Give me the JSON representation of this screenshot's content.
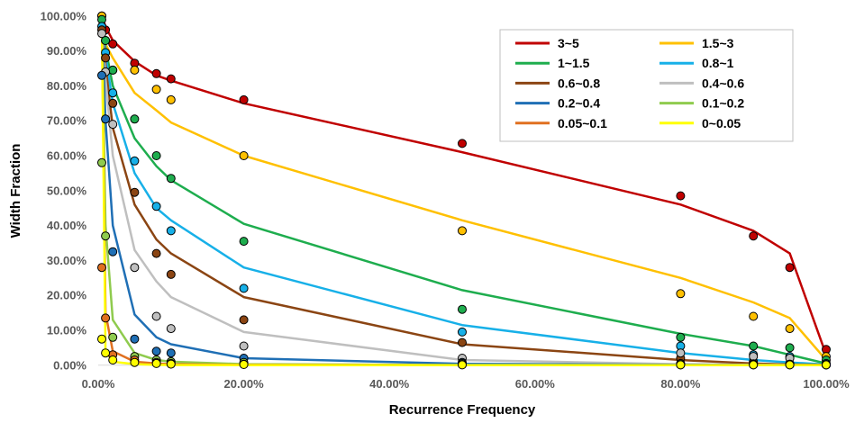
{
  "chart_data": {
    "type": "line",
    "title": "",
    "xlabel": "Recurrence Frequency",
    "ylabel": "Width Fraction",
    "xlim": [
      0,
      100
    ],
    "ylim": [
      0,
      100
    ],
    "x_ticks": [
      "0.00%",
      "20.00%",
      "40.00%",
      "60.00%",
      "80.00%",
      "100.00%"
    ],
    "y_ticks": [
      "0.00%",
      "10.00%",
      "20.00%",
      "30.00%",
      "40.00%",
      "50.00%",
      "60.00%",
      "70.00%",
      "80.00%",
      "90.00%",
      "100.00%"
    ],
    "grid": false,
    "legend_position": "top-right",
    "x": [
      0.5,
      1,
      2,
      5,
      8,
      10,
      20,
      50,
      80,
      90,
      95,
      100
    ],
    "series": [
      {
        "name": "3~5",
        "color": "#C00000",
        "line": [
          100,
          97,
          93,
          87,
          83,
          81.5,
          75,
          61,
          46,
          38.5,
          32,
          3
        ],
        "points": [
          100,
          96,
          92,
          86.5,
          83.5,
          82,
          76,
          63.5,
          48.5,
          37,
          28,
          4.5
        ]
      },
      {
        "name": "1.5~3",
        "color": "#FFC000",
        "line": [
          100,
          92,
          88,
          78,
          73,
          69.5,
          60,
          41.5,
          25,
          18,
          13.5,
          1.5
        ],
        "points": [
          100,
          93,
          84.5,
          84.5,
          79,
          76,
          60,
          38.5,
          20.5,
          14,
          10.5,
          2.5
        ]
      },
      {
        "name": "1~1.5",
        "color": "#1EAD4E",
        "line": [
          100,
          91,
          80,
          65,
          57,
          53,
          40.5,
          21.5,
          9,
          5.5,
          3,
          0.5
        ],
        "points": [
          99,
          93,
          84.5,
          70.5,
          60,
          53.5,
          35.5,
          16,
          8,
          5.5,
          5,
          1.5
        ]
      },
      {
        "name": "0.8~1",
        "color": "#17B0E8",
        "line": [
          100,
          89,
          75,
          55,
          45,
          41.5,
          28,
          11.5,
          3.5,
          1.5,
          0.8,
          0.2
        ],
        "points": [
          97,
          89.5,
          78,
          58.5,
          45.5,
          38.5,
          22,
          9.5,
          5.5,
          3,
          2.5,
          0.5
        ]
      },
      {
        "name": "0.6~0.8",
        "color": "#8B4513",
        "line": [
          100,
          86,
          68,
          46,
          36,
          32,
          19.5,
          6,
          1.5,
          0.5,
          0.2,
          0.1
        ],
        "points": [
          96,
          88,
          75,
          49.5,
          32,
          26,
          13,
          6.5,
          2,
          1,
          0.5,
          0.2
        ]
      },
      {
        "name": "0.4~0.6",
        "color": "#BFBFBF",
        "line": [
          100,
          82,
          60,
          33,
          24,
          19.5,
          9.5,
          1.5,
          0.3,
          0.1,
          0.05,
          0.02
        ],
        "points": [
          95,
          84,
          69,
          28,
          14,
          10.5,
          5.5,
          2,
          3.5,
          2.5,
          2,
          0.1
        ]
      },
      {
        "name": "0.2~0.4",
        "color": "#1F6FB5",
        "line": [
          100,
          70,
          40,
          14.5,
          8,
          6,
          2,
          0.4,
          0.1,
          0.05,
          0.02,
          0.01
        ],
        "points": [
          83,
          70.5,
          32.5,
          7.5,
          4,
          3.5,
          2,
          0.8,
          0.5,
          0.4,
          0.3,
          0.1
        ]
      },
      {
        "name": "0.1~0.2",
        "color": "#8FCB4E",
        "line": [
          100,
          40,
          13,
          3.5,
          1.5,
          1,
          0.3,
          0.05,
          0.02,
          0.01,
          0.01,
          0
        ],
        "points": [
          58,
          37,
          8,
          2.5,
          1.5,
          1,
          0.8,
          0.5,
          0.4,
          0.3,
          0.2,
          0.1
        ]
      },
      {
        "name": "0.05~0.1",
        "color": "#E07020",
        "line": [
          100,
          15,
          4,
          1,
          0.5,
          0.3,
          0.1,
          0.02,
          0.01,
          0,
          0,
          0
        ],
        "points": [
          28,
          13.5,
          3,
          1.5,
          0.8,
          0.5,
          0.3,
          0.2,
          0.1,
          0.1,
          0.1,
          0.1
        ]
      },
      {
        "name": "0~0.05",
        "color": "#FFFF00",
        "line": [
          100,
          4,
          1,
          0.3,
          0.1,
          0.05,
          0.02,
          0,
          0,
          0,
          0,
          0
        ],
        "points": [
          7.5,
          3.5,
          1.5,
          0.8,
          0.5,
          0.3,
          0.2,
          0.1,
          0.1,
          0.1,
          0.1,
          0.1
        ]
      }
    ]
  }
}
